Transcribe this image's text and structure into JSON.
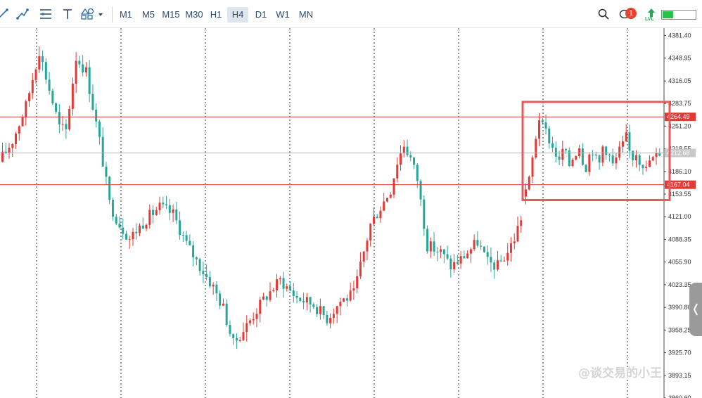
{
  "toolbar": {
    "tools": [
      {
        "id": "line",
        "icon": "line-tool-icon"
      },
      {
        "id": "polyline",
        "icon": "polyline-tool-icon"
      },
      {
        "id": "channel",
        "icon": "channel-tool-icon"
      },
      {
        "id": "text",
        "icon": "text-tool-icon"
      },
      {
        "id": "shapes",
        "icon": "shapes-tool-icon"
      }
    ],
    "timeframes": [
      "M1",
      "M5",
      "M15",
      "M30",
      "H1",
      "H4",
      "D1",
      "W1",
      "MN"
    ],
    "active_timeframe": "H4",
    "notification_count": "1",
    "level_label": "LVL",
    "level_fill": 0.32,
    "colors": {
      "level": "#27c24c",
      "badge": "#e8412f"
    }
  },
  "chart_data": {
    "type": "candlestick",
    "y_ticks": [
      "4381.40",
      "4348.95",
      "4316.05",
      "4283.75",
      "4251.20",
      "4218.55",
      "4186.10",
      "4153.55",
      "4121.00",
      "4088.35",
      "4055.90",
      "4023.35",
      "3990.80",
      "3958.25",
      "3925.70",
      "3893.15",
      "3860.60"
    ],
    "y_range": [
      3860.6,
      4392.0
    ],
    "horizontal_lines": [
      {
        "value": 4264.49,
        "label": "4264.49",
        "color": "#e53935"
      },
      {
        "value": 4167.04,
        "label": "4167.04",
        "color": "#e53935"
      }
    ],
    "current_price": {
      "value": 4212.68,
      "label": "4212.68"
    },
    "highlight_box": {
      "from_price": 4286.0,
      "to_price": 4145.0,
      "color": "#e8585c"
    },
    "colors": {
      "bull": "#e53935",
      "bear": "#26a69a",
      "grid": "#2a2a2a"
    },
    "num_candles": 157
  },
  "watermark": "@谈交易的小王"
}
